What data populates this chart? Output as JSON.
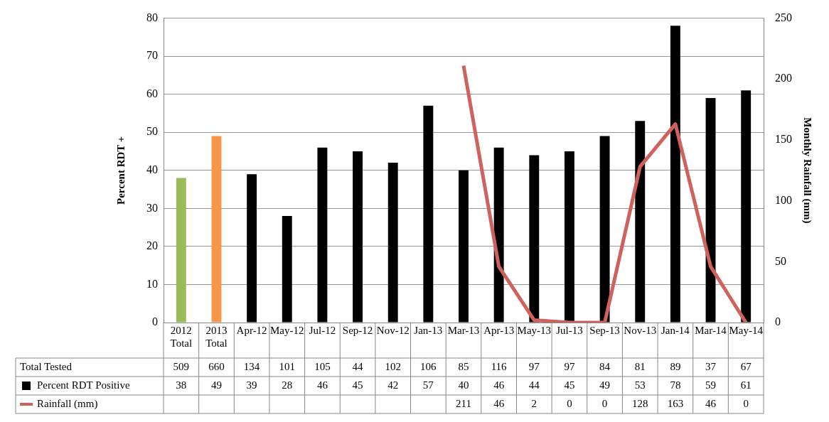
{
  "chart_data": {
    "type": "bar",
    "xlabel": null,
    "ylabel": "Percent RDT +",
    "y2label": "Monthly Rainfall (mm)",
    "categories": [
      "2012 Total",
      "2013 Total",
      "Apr-12",
      "May-12",
      "Jul-12",
      "Sep-12",
      "Nov-12",
      "Jan-13",
      "Mar-13",
      "Apr-13",
      "May-13",
      "Jul-13",
      "Sep-13",
      "Nov-13",
      "Jan-14",
      "Mar-14",
      "May-14"
    ],
    "series": [
      {
        "name": "Percent RDT Positive",
        "colors": [
          "#9bbb59",
          "#f79646",
          "#000000",
          "#000000",
          "#000000",
          "#000000",
          "#000000",
          "#000000",
          "#000000",
          "#000000",
          "#000000",
          "#000000",
          "#000000",
          "#000000",
          "#000000",
          "#000000",
          "#000000"
        ],
        "values": [
          38,
          49,
          39,
          28,
          46,
          45,
          42,
          57,
          40,
          46,
          44,
          45,
          49,
          53,
          78,
          59,
          61
        ]
      },
      {
        "name": "Rainfall (mm)",
        "type": "line",
        "axis": "y2",
        "color": "#cf625c",
        "values": [
          null,
          null,
          null,
          null,
          null,
          null,
          null,
          null,
          211,
          46,
          2,
          0,
          0,
          128,
          163,
          46,
          0
        ]
      }
    ],
    "ylim": [
      0,
      80
    ],
    "yticks": [
      0,
      10,
      20,
      30,
      40,
      50,
      60,
      70,
      80
    ],
    "y2lim": [
      0,
      250
    ],
    "y2ticks": [
      0,
      50,
      100,
      150,
      200,
      250
    ],
    "annotations": [
      "Total Tested",
      "509",
      "660",
      "134",
      "101",
      "105",
      "44",
      "102",
      "106",
      "85",
      "116",
      "97",
      "97",
      "84",
      "81",
      "89",
      "37",
      "67"
    ],
    "grid": "y",
    "legend": "bottom left",
    "marker": "none",
    "data_labels": true
  }
}
